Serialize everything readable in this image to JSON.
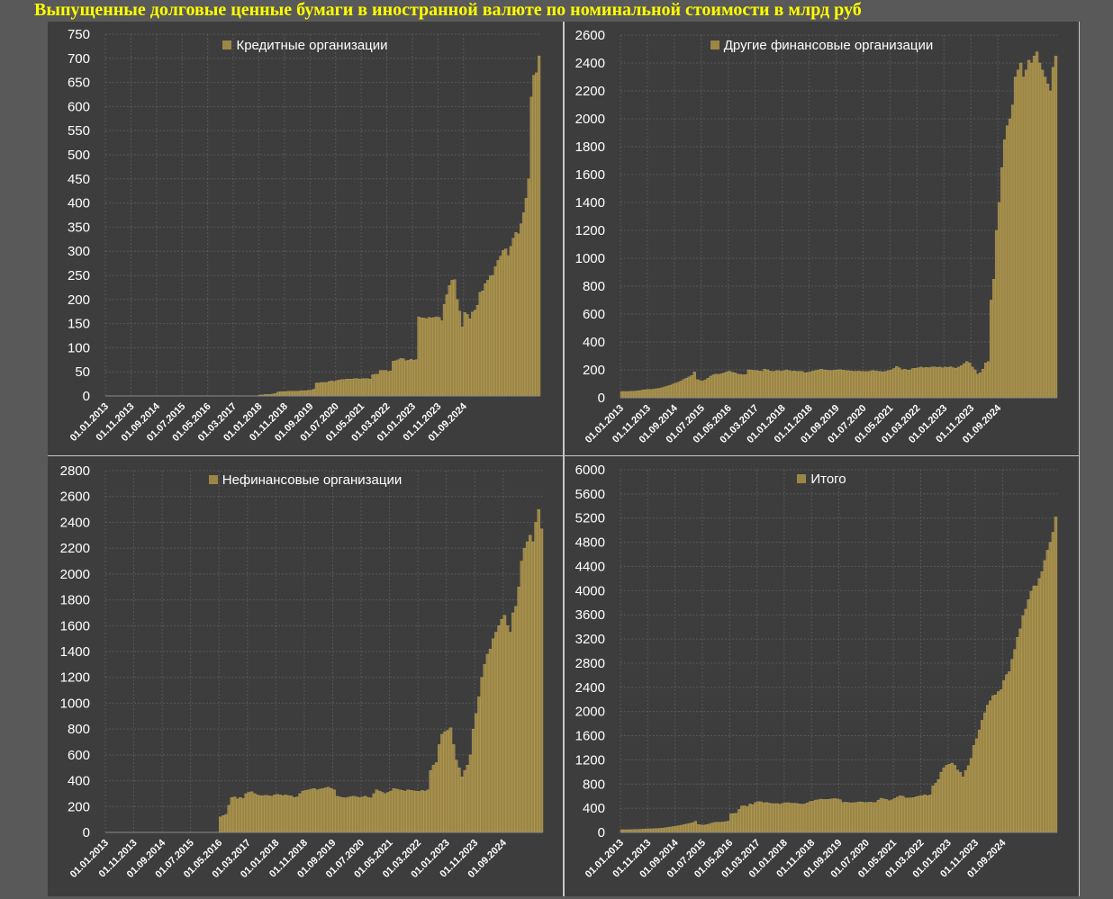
{
  "title": "Выпущенные долговые ценные бумаги в иностранной валюте по номинальной стоимости в млрд руб",
  "colors": {
    "bar": "#9c8646",
    "bar_stroke": "#c2ab65",
    "panel_bg": "#3d3d3d",
    "page_bg": "#595959",
    "title": "#ffff00",
    "grid": "#585858",
    "text": "#ffffff"
  },
  "chart_data": [
    {
      "type": "bar",
      "title": "",
      "legend": "Кредитные организации",
      "legend_position": "top-center",
      "grid": true,
      "ylim": [
        0,
        750
      ],
      "y_ticks": [
        0,
        50,
        100,
        150,
        200,
        250,
        300,
        350,
        400,
        450,
        500,
        550,
        600,
        650,
        700,
        750
      ],
      "x_ticks": [
        "01.01.2013",
        "01.11.2013",
        "01.09.2014",
        "01.07.2015",
        "01.05.2016",
        "01.03.2017",
        "01.01.2018",
        "01.11.2018",
        "01.09.2019",
        "01.07.2020",
        "01.05.2021",
        "01.03.2022",
        "01.01.2023",
        "01.11.2023",
        "01.09.2024"
      ],
      "series": [
        {
          "name": "Кредитные организации",
          "start": "01.01.2013",
          "step": "month",
          "values": [
            0,
            0,
            0,
            0,
            0,
            0,
            0,
            0,
            0,
            0,
            0,
            0,
            0,
            0,
            0,
            0,
            0,
            0,
            0,
            0,
            0,
            0,
            0,
            0,
            0,
            0,
            0,
            0,
            0,
            0,
            0,
            0,
            0,
            0,
            0,
            0,
            0,
            0,
            0,
            0,
            0,
            0,
            0,
            0,
            0,
            0,
            0,
            0,
            0,
            0,
            0,
            0,
            0,
            0,
            0,
            0,
            0,
            0,
            0,
            0,
            2,
            2,
            3,
            3,
            3,
            4,
            5,
            8,
            9,
            9,
            9,
            10,
            10,
            10,
            10,
            10,
            11,
            11,
            11,
            12,
            12,
            14,
            27,
            27,
            28,
            28,
            28,
            30,
            31,
            30,
            32,
            33,
            34,
            34,
            35,
            35,
            35,
            36,
            36,
            35,
            36,
            36,
            36,
            35,
            44,
            45,
            45,
            53,
            53,
            53,
            51,
            52,
            72,
            73,
            75,
            78,
            77,
            73,
            74,
            76,
            74,
            75,
            164,
            162,
            162,
            160,
            163,
            162,
            163,
            164,
            163,
            156,
            190,
            210,
            229,
            240,
            241,
            200,
            176,
            143,
            173,
            169,
            160,
            174,
            178,
            188,
            215,
            218,
            233,
            240,
            249,
            250,
            268,
            281,
            290,
            302,
            305,
            291,
            310,
            327,
            339,
            336,
            357,
            380,
            410,
            450,
            620,
            665,
            670,
            705
          ]
        }
      ]
    },
    {
      "type": "bar",
      "title": "",
      "legend": "Другие финансовые организации",
      "legend_position": "top-center",
      "grid": true,
      "ylim": [
        0,
        2600
      ],
      "y_ticks": [
        0,
        200,
        400,
        600,
        800,
        1000,
        1200,
        1400,
        1600,
        1800,
        2000,
        2200,
        2400,
        2600
      ],
      "x_ticks": [
        "01.01.2013",
        "01.11.2013",
        "01.09.2014",
        "01.07.2015",
        "01.05.2016",
        "01.03.2017",
        "01.01.2018",
        "01.11.2018",
        "01.09.2019",
        "01.07.2020",
        "01.05.2021",
        "01.03.2022",
        "01.01.2023",
        "01.11.2023",
        "01.09.2024"
      ],
      "series": [
        {
          "name": "Другие финансовые организации",
          "start": "01.01.2013",
          "step": "month",
          "values": [
            45,
            45,
            45,
            46,
            47,
            48,
            50,
            52,
            56,
            58,
            60,
            60,
            62,
            65,
            68,
            72,
            78,
            84,
            90,
            98,
            105,
            112,
            120,
            132,
            140,
            150,
            160,
            185,
            130,
            125,
            120,
            128,
            140,
            155,
            165,
            170,
            168,
            172,
            178,
            186,
            190,
            182,
            178,
            170,
            168,
            165,
            166,
            200,
            198,
            196,
            195,
            192,
            190,
            205,
            200,
            192,
            188,
            192,
            195,
            190,
            193,
            200,
            195,
            190,
            192,
            188,
            190,
            188,
            180,
            182,
            185,
            192,
            195,
            200,
            205,
            200,
            198,
            195,
            196,
            198,
            200,
            202,
            198,
            195,
            194,
            192,
            190,
            190,
            191,
            189,
            188,
            188,
            190,
            195,
            193,
            190,
            188,
            186,
            190,
            195,
            200,
            210,
            225,
            215,
            200,
            205,
            198,
            200,
            210,
            212,
            215,
            220,
            215,
            218,
            216,
            220,
            222,
            218,
            220,
            215,
            220,
            218,
            222,
            215,
            212,
            220,
            230,
            245,
            260,
            250,
            220,
            200,
            170,
            180,
            205,
            250,
            260,
            700,
            850,
            1200,
            1400,
            1650,
            1850,
            1950,
            2000,
            2100,
            2300,
            2350,
            2400,
            2300,
            2350,
            2420,
            2400,
            2450,
            2480,
            2400,
            2350,
            2300,
            2250,
            2200,
            2370,
            2450
          ]
        }
      ]
    },
    {
      "type": "bar",
      "title": "",
      "legend": "Нефинансовые организации",
      "legend_position": "top-center",
      "grid": true,
      "ylim": [
        0,
        2800
      ],
      "y_ticks": [
        0,
        200,
        400,
        600,
        800,
        1000,
        1200,
        1400,
        1600,
        1800,
        2000,
        2200,
        2400,
        2600,
        2800
      ],
      "x_ticks": [
        "01.01.2013",
        "01.11.2013",
        "01.09.2014",
        "01.07.2015",
        "01.05.2016",
        "01.03.2017",
        "01.01.2018",
        "01.11.2018",
        "01.09.2019",
        "01.07.2020",
        "01.05.2021",
        "01.03.2022",
        "01.01.2023",
        "01.11.2023",
        "01.09.2024"
      ],
      "series": [
        {
          "name": "Нефинансовые организации",
          "start": "01.01.2013",
          "step": "month",
          "values": [
            0,
            0,
            0,
            0,
            0,
            0,
            0,
            0,
            0,
            0,
            0,
            0,
            0,
            0,
            0,
            0,
            0,
            0,
            0,
            0,
            0,
            0,
            0,
            0,
            0,
            0,
            0,
            0,
            0,
            0,
            0,
            0,
            0,
            0,
            0,
            0,
            0,
            0,
            0,
            0,
            120,
            130,
            140,
            210,
            270,
            275,
            260,
            270,
            262,
            300,
            310,
            315,
            300,
            290,
            285,
            285,
            288,
            285,
            280,
            290,
            295,
            290,
            285,
            290,
            285,
            282,
            270,
            275,
            300,
            320,
            325,
            330,
            335,
            340,
            330,
            335,
            340,
            345,
            350,
            340,
            330,
            280,
            275,
            270,
            268,
            272,
            278,
            280,
            275,
            270,
            275,
            280,
            270,
            268,
            300,
            330,
            320,
            310,
            300,
            310,
            320,
            340,
            335,
            330,
            325,
            320,
            330,
            325,
            322,
            320,
            318,
            325,
            320,
            330,
            480,
            520,
            540,
            680,
            760,
            780,
            790,
            810,
            680,
            560,
            500,
            430,
            480,
            520,
            600,
            800,
            920,
            1050,
            1200,
            1300,
            1380,
            1420,
            1500,
            1550,
            1600,
            1650,
            1680,
            1600,
            1550,
            1700,
            1750,
            1900,
            2100,
            2200,
            2250,
            2300,
            2250,
            2400,
            2500,
            2350
          ]
        }
      ]
    },
    {
      "type": "bar",
      "title": "",
      "legend": "Итого",
      "legend_position": "top-center",
      "grid": true,
      "ylim": [
        0,
        6000
      ],
      "y_ticks": [
        0,
        400,
        800,
        1200,
        1600,
        2000,
        2400,
        2800,
        3200,
        3600,
        4000,
        4400,
        4800,
        5200,
        5600,
        6000
      ],
      "x_ticks": [
        "01.01.2013",
        "01.11.2013",
        "01.09.2014",
        "01.07.2015",
        "01.05.2016",
        "01.03.2017",
        "01.01.2018",
        "01.11.2018",
        "01.09.2019",
        "01.07.2020",
        "01.05.2021",
        "01.03.2022",
        "01.01.2023",
        "01.11.2023",
        "01.09.2024"
      ],
      "series": [
        {
          "name": "Итого",
          "start": "01.01.2013",
          "step": "month",
          "values": [
            45,
            45,
            45,
            46,
            47,
            48,
            50,
            52,
            56,
            58,
            60,
            60,
            62,
            65,
            68,
            72,
            78,
            84,
            90,
            98,
            105,
            112,
            120,
            132,
            140,
            150,
            160,
            185,
            130,
            125,
            120,
            128,
            140,
            155,
            165,
            170,
            168,
            172,
            178,
            186,
            310,
            312,
            318,
            380,
            438,
            440,
            426,
            470,
            460,
            496,
            510,
            507,
            490,
            495,
            485,
            477,
            476,
            477,
            468,
            480,
            490,
            492,
            483,
            483,
            480,
            474,
            465,
            471,
            489,
            511,
            518,
            535,
            540,
            550,
            545,
            545,
            549,
            556,
            561,
            552,
            542,
            496,
            500,
            495,
            490,
            492,
            496,
            506,
            502,
            494,
            495,
            501,
            496,
            496,
            535,
            565,
            555,
            544,
            526,
            540,
            564,
            586,
            605,
            598,
            569,
            570,
            573,
            578,
            592,
            603,
            608,
            622,
            609,
            621,
            770,
            813,
            876,
            997,
            1070,
            1110,
            1128,
            1146,
            1110,
            1030,
            996,
            920,
            1026,
            1104,
            1224,
            1441,
            1550,
            1696,
            1855,
            1980,
            2106,
            2178,
            2264,
            2275,
            2330,
            2361,
            2511,
            2612,
            2660,
            2865,
            3027,
            3229,
            3368,
            3587,
            3694,
            3851,
            3989,
            4079,
            4078,
            4201,
            4314,
            4500,
            4670,
            4800,
            4965,
            5220
          ]
        }
      ]
    }
  ]
}
